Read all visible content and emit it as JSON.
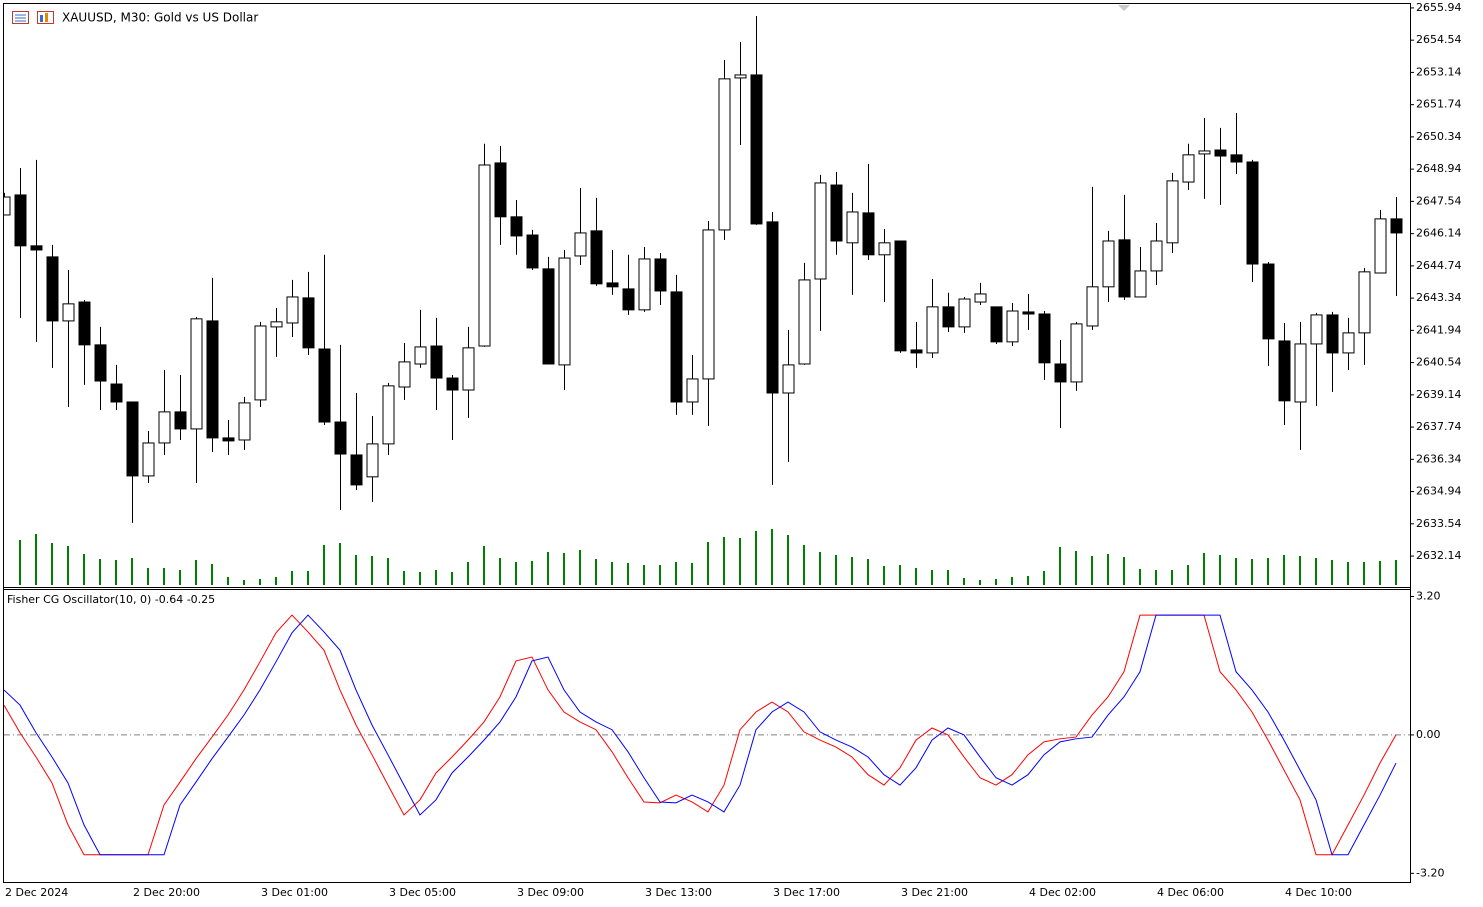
{
  "chart_data": [
    {
      "type": "candlestick",
      "title": "XAUUSD, M30:  Gold vs US Dollar",
      "categories": [
        "2 Dec 2024",
        null,
        null,
        null,
        null,
        null,
        null,
        null,
        "2 Dec 20:00",
        null,
        null,
        null,
        null,
        null,
        null,
        null,
        "3 Dec 01:00",
        null,
        null,
        null,
        null,
        null,
        null,
        null,
        "3 Dec 05:00",
        null,
        null,
        null,
        null,
        null,
        null,
        null,
        "3 Dec 09:00",
        null,
        null,
        null,
        null,
        null,
        null,
        null,
        "3 Dec 13:00",
        null,
        null,
        null,
        null,
        null,
        null,
        null,
        "3 Dec 17:00",
        null,
        null,
        null,
        null,
        null,
        null,
        null,
        "3 Dec 21:00",
        null,
        null,
        null,
        null,
        null,
        null,
        null,
        "4 Dec 02:00",
        null,
        null,
        null,
        null,
        null,
        null,
        null,
        "4 Dec 06:00",
        null,
        null,
        null,
        null,
        null,
        null,
        null,
        "4 Dec 10:00",
        null,
        null,
        null,
        null,
        null,
        null,
        null
      ],
      "open": [
        2646.95,
        2647.82,
        2645.61,
        2645.13,
        2642.35,
        2643.17,
        2641.31,
        2639.61,
        2638.83,
        2635.62,
        2637.05,
        2638.4,
        2637.66,
        2642.35,
        2637.27,
        2637.18,
        2638.92,
        2642.09,
        2642.26,
        2643.35,
        2641.13,
        2637.96,
        2636.53,
        2635.58,
        2637.01,
        2639.48,
        2640.48,
        2641.26,
        2639.87,
        2639.35,
        2641.26,
        2649.21,
        2646.87,
        2646.08,
        2644.61,
        2640.44,
        2645.17,
        2646.26,
        2644.0,
        2643.74,
        2642.83,
        2645.04,
        2643.61,
        2638.83,
        2639.83,
        2646.3,
        2652.9,
        2653.03,
        2646.65,
        2639.22,
        2640.48,
        2644.17,
        2648.25,
        2645.74,
        2647.04,
        2645.22,
        2645.82,
        2641.09,
        2640.96,
        2642.96,
        2642.09,
        2643.17,
        2642.96,
        2641.44,
        2642.74,
        2642.65,
        2640.48,
        2639.7,
        2642.13,
        2643.83,
        2645.87,
        2643.39,
        2644.52,
        2645.74,
        2648.38,
        2649.6,
        2649.77,
        2649.56,
        2649.25,
        2644.82,
        2641.48,
        2638.83,
        2641.35,
        2642.61,
        2640.96,
        2641.83,
        2644.43,
        2646.78
      ],
      "high": [
        2647.91,
        2648.99,
        2649.34,
        2645.65,
        2644.56,
        2643.26,
        2642.09,
        2640.44,
        2638.83,
        2637.57,
        2640.22,
        2640.0,
        2642.52,
        2644.22,
        2638.05,
        2639.05,
        2642.31,
        2642.91,
        2644.13,
        2644.48,
        2645.22,
        2641.31,
        2639.22,
        2638.22,
        2639.66,
        2641.39,
        2642.83,
        2642.48,
        2640.0,
        2642.09,
        2650.04,
        2649.95,
        2647.6,
        2646.3,
        2645.13,
        2645.43,
        2648.12,
        2647.69,
        2645.43,
        2645.22,
        2645.56,
        2645.3,
        2644.35,
        2640.87,
        2646.69,
        2653.68,
        2654.46,
        2655.59,
        2647.08,
        2641.96,
        2644.87,
        2648.69,
        2648.82,
        2647.91,
        2649.17,
        2646.34,
        2645.82,
        2642.31,
        2644.17,
        2643.57,
        2643.39,
        2644.0,
        2642.96,
        2643.13,
        2643.52,
        2642.78,
        2641.52,
        2642.31,
        2648.17,
        2646.26,
        2647.82,
        2645.56,
        2646.6,
        2648.78,
        2650.04,
        2651.16,
        2650.73,
        2651.38,
        2649.34,
        2644.91,
        2642.26,
        2642.31,
        2642.7,
        2642.74,
        2642.48,
        2644.65,
        2647.17,
        2647.73
      ],
      "low": [
        2646.95,
        2642.48,
        2641.44,
        2640.31,
        2638.61,
        2639.57,
        2638.48,
        2638.48,
        2633.58,
        2635.31,
        2636.53,
        2637.18,
        2635.31,
        2636.66,
        2636.53,
        2636.75,
        2638.61,
        2640.79,
        2641.65,
        2640.87,
        2637.83,
        2634.14,
        2635.01,
        2634.49,
        2636.53,
        2638.92,
        2640.31,
        2638.48,
        2637.18,
        2638.14,
        2641.22,
        2645.65,
        2645.22,
        2644.56,
        2640.48,
        2639.35,
        2644.78,
        2643.87,
        2643.48,
        2642.61,
        2642.74,
        2643.04,
        2638.27,
        2638.27,
        2637.79,
        2645.87,
        2649.99,
        2646.52,
        2635.23,
        2636.23,
        2640.44,
        2641.92,
        2645.22,
        2643.48,
        2645.0,
        2643.17,
        2640.96,
        2640.31,
        2640.74,
        2641.87,
        2641.83,
        2643.04,
        2641.35,
        2641.26,
        2641.96,
        2639.79,
        2637.7,
        2639.31,
        2641.96,
        2643.17,
        2643.26,
        2643.39,
        2643.91,
        2645.3,
        2648.04,
        2647.65,
        2647.39,
        2648.73,
        2644.04,
        2640.4,
        2637.83,
        2636.75,
        2638.66,
        2639.27,
        2640.22,
        2640.44,
        2644.43,
        2643.43
      ],
      "close": [
        2647.73,
        2645.61,
        2645.43,
        2642.35,
        2643.09,
        2641.31,
        2639.74,
        2638.83,
        2635.62,
        2637.05,
        2638.4,
        2637.66,
        2642.44,
        2637.27,
        2637.14,
        2638.79,
        2642.13,
        2642.31,
        2643.39,
        2641.18,
        2637.96,
        2636.57,
        2635.23,
        2637.01,
        2639.53,
        2640.57,
        2641.22,
        2639.87,
        2639.35,
        2641.18,
        2649.12,
        2646.87,
        2646.04,
        2644.65,
        2640.48,
        2645.08,
        2646.17,
        2643.96,
        2643.83,
        2642.83,
        2645.04,
        2643.65,
        2638.83,
        2639.83,
        2646.3,
        2652.86,
        2653.03,
        2646.56,
        2639.22,
        2640.44,
        2644.13,
        2648.34,
        2645.82,
        2647.08,
        2645.22,
        2645.74,
        2641.05,
        2640.96,
        2642.96,
        2642.09,
        2643.3,
        2643.52,
        2641.44,
        2642.78,
        2642.65,
        2640.53,
        2639.7,
        2642.22,
        2643.83,
        2645.82,
        2643.39,
        2644.52,
        2645.82,
        2648.43,
        2649.56,
        2649.73,
        2649.51,
        2649.25,
        2644.82,
        2641.57,
        2638.88,
        2641.35,
        2642.61,
        2640.96,
        2641.83,
        2644.48,
        2646.78,
        2646.17
      ],
      "volume": [
        null,
        45,
        51,
        42,
        39,
        31,
        26,
        25,
        27,
        17,
        17,
        15,
        25,
        21,
        8,
        5,
        6,
        8,
        14,
        14,
        40,
        42,
        30,
        29,
        27,
        14,
        13,
        15,
        13,
        23,
        39,
        27,
        23,
        24,
        33,
        32,
        35,
        26,
        23,
        22,
        20,
        20,
        23,
        22,
        43,
        48,
        47,
        54,
        56,
        50,
        40,
        33,
        30,
        28,
        26,
        19,
        20,
        17,
        15,
        15,
        7,
        5,
        6,
        8,
        9,
        14,
        38,
        34,
        29,
        31,
        28,
        16,
        15,
        15,
        20,
        32,
        30,
        27,
        26,
        27,
        30,
        29,
        27,
        25,
        23,
        23,
        24,
        25
      ],
      "up_color": "#ffffff",
      "down_color": "#000000",
      "volume_color": "#008000",
      "ylim": [
        2630.84,
        2656.11
      ],
      "yticks": [
        2655.94,
        2654.54,
        2653.14,
        2651.74,
        2650.34,
        2648.94,
        2647.54,
        2646.14,
        2644.74,
        2643.34,
        2641.94,
        2640.54,
        2639.14,
        2637.74,
        2636.34,
        2634.94,
        2633.54,
        2632.14
      ]
    },
    {
      "type": "line",
      "title": "Fisher CG Oscillator(10, 0) -0.64 -0.25",
      "series": [
        {
          "color": "#ff0000",
          "values": [
            0.69,
            0.05,
            -0.51,
            -1.11,
            -2.08,
            -2.77,
            -2.77,
            -2.77,
            -2.77,
            -2.77,
            -1.62,
            -1.09,
            -0.55,
            -0.05,
            0.46,
            1.04,
            1.69,
            2.36,
            2.77,
            2.38,
            1.96,
            1.04,
            0.23,
            -0.46,
            -1.16,
            -1.85,
            -1.5,
            -0.88,
            -0.51,
            -0.12,
            0.3,
            0.88,
            1.71,
            1.8,
            1.04,
            0.53,
            0.3,
            0.12,
            -0.39,
            -0.99,
            -1.55,
            -1.57,
            -1.39,
            -1.55,
            -1.78,
            -1.16,
            0.12,
            0.53,
            0.76,
            0.53,
            0.07,
            -0.12,
            -0.28,
            -0.51,
            -0.92,
            -1.16,
            -0.76,
            -0.12,
            0.16,
            0.0,
            -0.51,
            -0.99,
            -1.16,
            -0.92,
            -0.46,
            -0.16,
            -0.09,
            -0.05,
            0.46,
            0.88,
            1.46,
            2.77,
            2.77,
            2.77,
            2.77,
            2.77,
            1.46,
            1.04,
            0.53,
            -0.12,
            -0.81,
            -1.5,
            -2.77,
            -2.77,
            -2.08,
            -1.39,
            -0.65,
            0.0
          ]
        },
        {
          "color": "#0000ff",
          "values": [
            1.04,
            0.69,
            0.05,
            -0.51,
            -1.11,
            -2.08,
            -2.77,
            -2.77,
            -2.77,
            -2.77,
            -2.77,
            -1.62,
            -1.09,
            -0.55,
            -0.05,
            0.46,
            1.04,
            1.69,
            2.36,
            2.77,
            2.38,
            1.96,
            1.04,
            0.23,
            -0.46,
            -1.16,
            -1.85,
            -1.5,
            -0.88,
            -0.51,
            -0.12,
            0.3,
            0.88,
            1.71,
            1.8,
            1.04,
            0.53,
            0.3,
            0.12,
            -0.39,
            -0.99,
            -1.55,
            -1.57,
            -1.39,
            -1.55,
            -1.78,
            -1.16,
            0.12,
            0.53,
            0.76,
            0.53,
            0.07,
            -0.12,
            -0.28,
            -0.51,
            -0.92,
            -1.16,
            -0.76,
            -0.12,
            0.16,
            0.0,
            -0.51,
            -0.99,
            -1.16,
            -0.92,
            -0.46,
            -0.16,
            -0.09,
            -0.05,
            0.46,
            0.88,
            1.46,
            2.77,
            2.77,
            2.77,
            2.77,
            2.77,
            1.46,
            1.04,
            0.53,
            -0.12,
            -0.81,
            -1.5,
            -2.77,
            -2.77,
            -2.08,
            -1.39,
            -0.65
          ]
        }
      ],
      "ylim": [
        -3.4,
        3.35
      ],
      "yticks": [
        {
          "value": 3.2,
          "label": "3.20"
        },
        {
          "value": 0,
          "label": "0.00"
        },
        {
          "value": -3.2,
          "label": "-3.20"
        }
      ],
      "levels": [
        0
      ]
    }
  ]
}
